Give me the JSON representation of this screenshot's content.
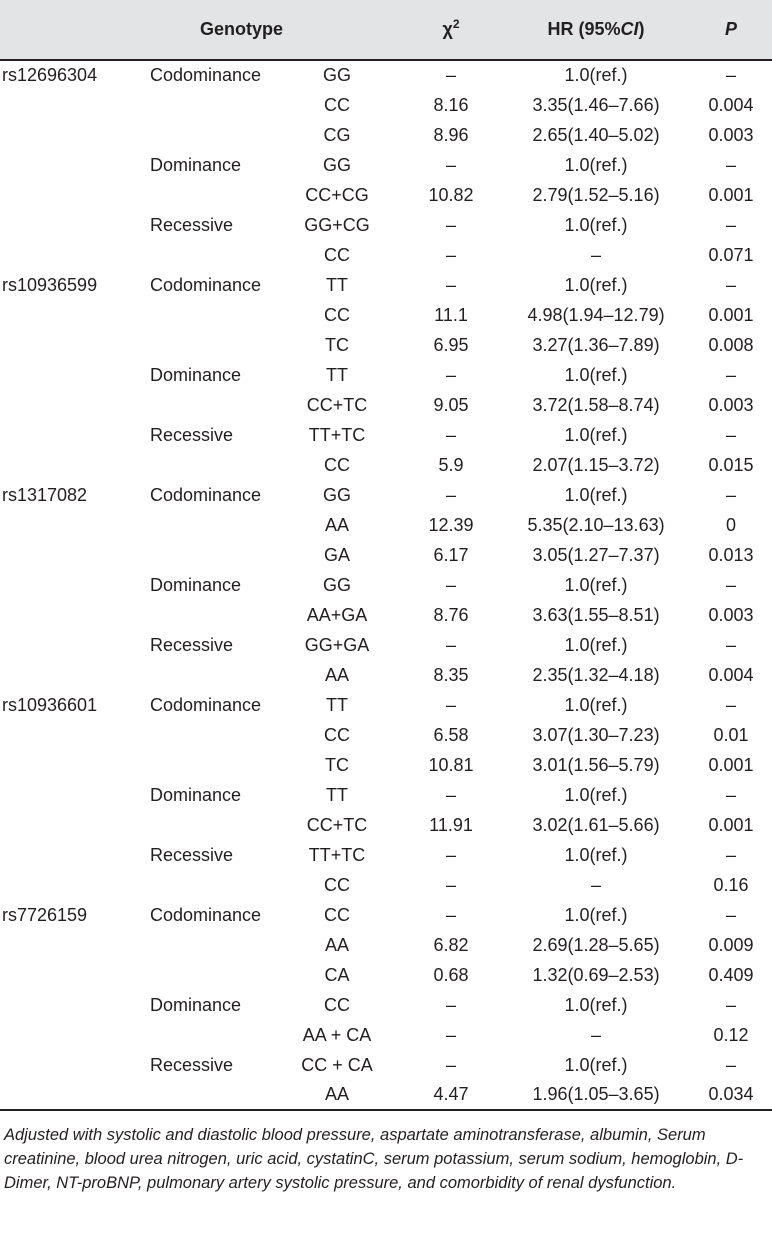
{
  "header": {
    "genotype": "Genotype",
    "chi_base": "χ",
    "chi_sup": "2",
    "hr_prefix": "HR (95%",
    "hr_ci": "CI",
    "hr_suffix": ")",
    "p": "P"
  },
  "rows": [
    {
      "snp": "rs12696304",
      "model": "Codominance",
      "geno": "GG",
      "chi": "–",
      "hr": "1.0(ref.)",
      "p": "–"
    },
    {
      "snp": "",
      "model": "",
      "geno": "CC",
      "chi": "8.16",
      "hr": "3.35(1.46–7.66)",
      "p": "0.004"
    },
    {
      "snp": "",
      "model": "",
      "geno": "CG",
      "chi": "8.96",
      "hr": "2.65(1.40–5.02)",
      "p": "0.003"
    },
    {
      "snp": "",
      "model": "Dominance",
      "geno": "GG",
      "chi": "–",
      "hr": "1.0(ref.)",
      "p": "–"
    },
    {
      "snp": "",
      "model": "",
      "geno": "CC+CG",
      "chi": "10.82",
      "hr": "2.79(1.52–5.16)",
      "p": "0.001"
    },
    {
      "snp": "",
      "model": "Recessive",
      "geno": "GG+CG",
      "chi": "–",
      "hr": "1.0(ref.)",
      "p": "–"
    },
    {
      "snp": "",
      "model": "",
      "geno": "CC",
      "chi": "–",
      "hr": "–",
      "p": "0.071"
    },
    {
      "snp": "rs10936599",
      "model": "Codominance",
      "geno": "TT",
      "chi": "–",
      "hr": "1.0(ref.)",
      "p": "–"
    },
    {
      "snp": "",
      "model": "",
      "geno": "CC",
      "chi": "11.1",
      "hr": "4.98(1.94–12.79)",
      "p": "0.001"
    },
    {
      "snp": "",
      "model": "",
      "geno": "TC",
      "chi": "6.95",
      "hr": "3.27(1.36–7.89)",
      "p": "0.008"
    },
    {
      "snp": "",
      "model": "Dominance",
      "geno": "TT",
      "chi": "–",
      "hr": "1.0(ref.)",
      "p": "–"
    },
    {
      "snp": "",
      "model": "",
      "geno": "CC+TC",
      "chi": "9.05",
      "hr": "3.72(1.58–8.74)",
      "p": "0.003"
    },
    {
      "snp": "",
      "model": "Recessive",
      "geno": "TT+TC",
      "chi": "–",
      "hr": "1.0(ref.)",
      "p": "–"
    },
    {
      "snp": "",
      "model": "",
      "geno": "CC",
      "chi": "5.9",
      "hr": "2.07(1.15–3.72)",
      "p": "0.015"
    },
    {
      "snp": "rs1317082",
      "model": "Codominance",
      "geno": "GG",
      "chi": "–",
      "hr": "1.0(ref.)",
      "p": "–"
    },
    {
      "snp": "",
      "model": "",
      "geno": "AA",
      "chi": "12.39",
      "hr": "5.35(2.10–13.63)",
      "p": "0"
    },
    {
      "snp": "",
      "model": "",
      "geno": "GA",
      "chi": "6.17",
      "hr": "3.05(1.27–7.37)",
      "p": "0.013"
    },
    {
      "snp": "",
      "model": "Dominance",
      "geno": "GG",
      "chi": "–",
      "hr": "1.0(ref.)",
      "p": "–"
    },
    {
      "snp": "",
      "model": "",
      "geno": "AA+GA",
      "chi": "8.76",
      "hr": "3.63(1.55–8.51)",
      "p": "0.003"
    },
    {
      "snp": "",
      "model": "Recessive",
      "geno": "GG+GA",
      "chi": "–",
      "hr": "1.0(ref.)",
      "p": "–"
    },
    {
      "snp": "",
      "model": "",
      "geno": "AA",
      "chi": "8.35",
      "hr": "2.35(1.32–4.18)",
      "p": "0.004"
    },
    {
      "snp": "rs10936601",
      "model": "Codominance",
      "geno": "TT",
      "chi": "–",
      "hr": "1.0(ref.)",
      "p": "–"
    },
    {
      "snp": "",
      "model": "",
      "geno": "CC",
      "chi": "6.58",
      "hr": "3.07(1.30–7.23)",
      "p": "0.01"
    },
    {
      "snp": "",
      "model": "",
      "geno": "TC",
      "chi": "10.81",
      "hr": "3.01(1.56–5.79)",
      "p": "0.001"
    },
    {
      "snp": "",
      "model": "Dominance",
      "geno": "TT",
      "chi": "–",
      "hr": "1.0(ref.)",
      "p": "–"
    },
    {
      "snp": "",
      "model": "",
      "geno": "CC+TC",
      "chi": "11.91",
      "hr": "3.02(1.61–5.66)",
      "p": "0.001"
    },
    {
      "snp": "",
      "model": "Recessive",
      "geno": "TT+TC",
      "chi": "–",
      "hr": "1.0(ref.)",
      "p": "–"
    },
    {
      "snp": "",
      "model": "",
      "geno": "CC",
      "chi": "–",
      "hr": "–",
      "p": "0.16"
    },
    {
      "snp": "rs7726159",
      "model": "Codominance",
      "geno": "CC",
      "chi": "–",
      "hr": "1.0(ref.)",
      "p": "–"
    },
    {
      "snp": "",
      "model": "",
      "geno": "AA",
      "chi": "6.82",
      "hr": "2.69(1.28–5.65)",
      "p": "0.009"
    },
    {
      "snp": "",
      "model": "",
      "geno": "CA",
      "chi": "0.68",
      "hr": "1.32(0.69–2.53)",
      "p": "0.409"
    },
    {
      "snp": "",
      "model": "Dominance",
      "geno": "CC",
      "chi": "–",
      "hr": "1.0(ref.)",
      "p": "–"
    },
    {
      "snp": "",
      "model": "",
      "geno": "AA + CA",
      "chi": "–",
      "hr": "–",
      "p": "0.12"
    },
    {
      "snp": "",
      "model": "Recessive",
      "geno": "CC + CA",
      "chi": "–",
      "hr": "1.0(ref.)",
      "p": "–"
    },
    {
      "snp": "",
      "model": "",
      "geno": "AA",
      "chi": "4.47",
      "hr": "1.96(1.05–3.65)",
      "p": "0.034"
    }
  ],
  "footnote": "Adjusted with systolic and diastolic blood pressure, aspartate aminotransferase, albumin, Serum creatinine, blood urea nitrogen, uric acid, cystatinC, serum potassium, serum sodium, hemoglobin, D-Dimer, NT-proBNP, pulmonary artery systolic pressure, and comorbidity of renal dysfunction.",
  "colors": {
    "header_bg": "#e3e4e5",
    "text": "#231f20",
    "rule": "#231f20"
  }
}
